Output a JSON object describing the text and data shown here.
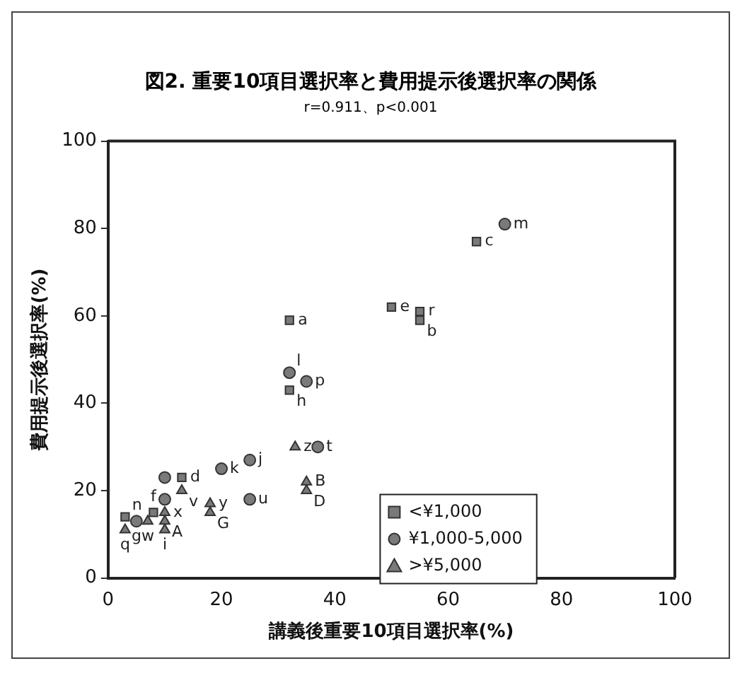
{
  "chart_data": {
    "type": "scatter",
    "title": "図2. 重要10項目選択率と費用提示後選択率の関係",
    "subtitle": "r=0.911、p<0.001",
    "xlabel": "講義後重要10項目選択率(%)",
    "ylabel": "費用提示後選択率(%)",
    "xlim": [
      0,
      100
    ],
    "xticks": [
      0,
      20,
      40,
      60,
      80,
      100
    ],
    "ylim": [
      0,
      100
    ],
    "yticks": [
      0,
      20,
      40,
      60,
      80,
      100
    ],
    "grid": false,
    "legend": "bottom right",
    "series": [
      {
        "name": "<¥1,000",
        "color": "#7a7a7a",
        "marker": "square",
        "x": [
          32,
          32,
          50,
          55,
          55,
          65,
          13,
          8,
          3
        ],
        "values": [
          59,
          43,
          62,
          61,
          59,
          77,
          23,
          15,
          14
        ]
      },
      {
        "name": "¥1,000-5,000",
        "color": "#7a7a7a",
        "marker": "circle",
        "x": [
          32,
          35,
          70,
          37,
          25,
          20,
          10,
          25,
          5,
          10
        ],
        "values": [
          47,
          45,
          81,
          30,
          27,
          25,
          23,
          18,
          13,
          18
        ]
      },
      {
        "name": ">¥5,000",
        "color": "#7a7a7a",
        "marker": "triangle",
        "x": [
          33,
          35,
          35,
          18,
          18,
          13,
          10,
          10,
          10,
          7,
          3
        ],
        "values": [
          30,
          22,
          20,
          17,
          15,
          20,
          15,
          13,
          11,
          13,
          11
        ]
      }
    ],
    "annotations": [
      {
        "text": "a",
        "x": 32,
        "y": 59
      },
      {
        "text": "h",
        "x": 32,
        "y": 43
      },
      {
        "text": "e",
        "x": 50,
        "y": 62
      },
      {
        "text": "r",
        "x": 55,
        "y": 61
      },
      {
        "text": "b",
        "x": 55,
        "y": 59
      },
      {
        "text": "c",
        "x": 65,
        "y": 77
      },
      {
        "text": "d",
        "x": 13,
        "y": 23
      },
      {
        "text": "f",
        "x": 8,
        "y": 15
      },
      {
        "text": "n",
        "x": 3,
        "y": 14
      },
      {
        "text": "l",
        "x": 32,
        "y": 47
      },
      {
        "text": "p",
        "x": 35,
        "y": 45
      },
      {
        "text": "m",
        "x": 70,
        "y": 81
      },
      {
        "text": "t",
        "x": 37,
        "y": 30
      },
      {
        "text": "j",
        "x": 25,
        "y": 27
      },
      {
        "text": "k",
        "x": 20,
        "y": 25
      },
      {
        "text": "u",
        "x": 25,
        "y": 18
      },
      {
        "text": "g",
        "x": 5,
        "y": 13
      },
      {
        "text": "z",
        "x": 33,
        "y": 30
      },
      {
        "text": "B",
        "x": 35,
        "y": 22
      },
      {
        "text": "D",
        "x": 35,
        "y": 20
      },
      {
        "text": "y",
        "x": 18,
        "y": 17
      },
      {
        "text": "G",
        "x": 18,
        "y": 15
      },
      {
        "text": "v",
        "x": 13,
        "y": 20
      },
      {
        "text": "x",
        "x": 10,
        "y": 15
      },
      {
        "text": "A",
        "x": 10,
        "y": 13
      },
      {
        "text": "i",
        "x": 10,
        "y": 11
      },
      {
        "text": "w",
        "x": 7,
        "y": 13
      },
      {
        "text": "q",
        "x": 3,
        "y": 11
      }
    ]
  }
}
